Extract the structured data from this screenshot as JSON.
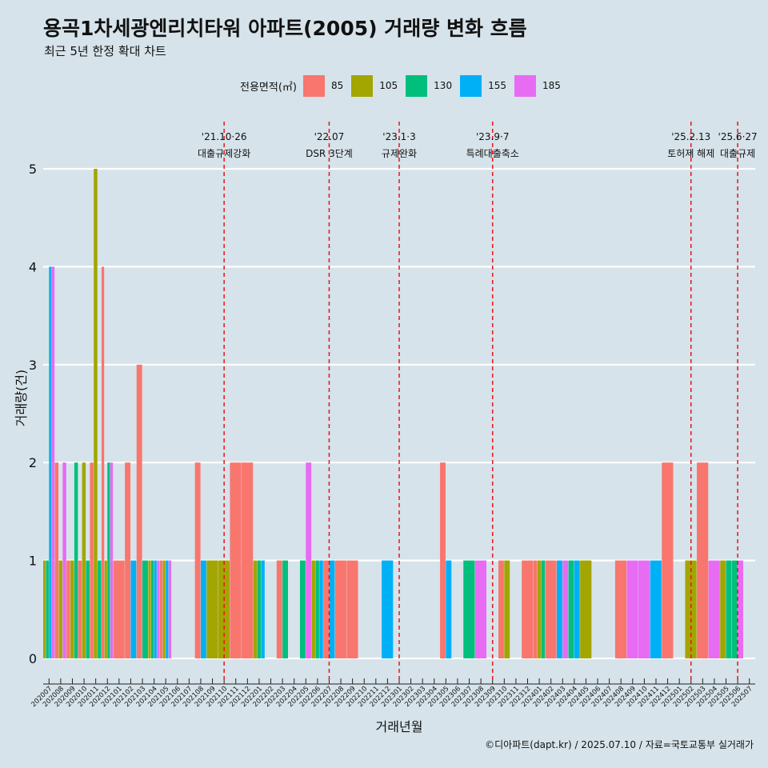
{
  "title": "용곡1차세광엔리치타워 아파트(2005) 거래량 변화 흐름",
  "subtitle": "최근 5년 한정 확대 차트",
  "source": "©디아파트(dapt.kr) / 2025.07.10 / 자료=국토교통부 실거래가",
  "legend": {
    "title": "전용면적(㎡)",
    "items": [
      {
        "label": "85",
        "color": "#f8766d"
      },
      {
        "label": "105",
        "color": "#a3a500"
      },
      {
        "label": "130",
        "color": "#00bf7d"
      },
      {
        "label": "155",
        "color": "#00b0f6"
      },
      {
        "label": "185",
        "color": "#e76bf3"
      }
    ]
  },
  "chart_data": {
    "type": "bar",
    "xlabel": "거래년월",
    "ylabel": "거래량(건)",
    "ylim": [
      0,
      5
    ],
    "yticks": [
      0,
      1,
      2,
      3,
      4,
      5
    ],
    "grid": true,
    "legend_position": "top",
    "categories": [
      "202007",
      "202008",
      "202009",
      "202010",
      "202011",
      "202012",
      "202101",
      "202102",
      "202103",
      "202104",
      "202105",
      "202106",
      "202107",
      "202108",
      "202109",
      "202110",
      "202111",
      "202112",
      "202201",
      "202202",
      "202203",
      "202204",
      "202205",
      "202206",
      "202207",
      "202208",
      "202209",
      "202210",
      "202211",
      "202212",
      "202301",
      "202302",
      "202303",
      "202304",
      "202305",
      "202306",
      "202307",
      "202308",
      "202309",
      "202310",
      "202311",
      "202312",
      "202401",
      "202402",
      "202403",
      "202404",
      "202405",
      "202406",
      "202407",
      "202408",
      "202409",
      "202410",
      "202411",
      "202412",
      "202501",
      "202502",
      "202503",
      "202504",
      "202505",
      "202506",
      "202507"
    ],
    "series": [
      {
        "name": "85",
        "color": "#f8766d",
        "values": [
          0,
          2,
          1,
          1,
          2,
          4,
          1,
          2,
          3,
          0,
          1,
          0,
          0,
          2,
          0,
          0,
          2,
          2,
          0,
          0,
          1,
          0,
          0,
          0,
          1,
          1,
          1,
          0,
          0,
          0,
          0,
          0,
          0,
          0,
          2,
          0,
          0,
          0,
          0,
          1,
          0,
          1,
          1,
          1,
          0,
          0,
          0,
          0,
          0,
          1,
          0,
          0,
          0,
          2,
          0,
          0,
          2,
          0,
          0,
          0,
          0
        ]
      },
      {
        "name": "105",
        "color": "#a3a500",
        "values": [
          1,
          1,
          1,
          2,
          5,
          1,
          0,
          0,
          0,
          1,
          1,
          0,
          0,
          0,
          1,
          1,
          0,
          0,
          1,
          0,
          0,
          0,
          0,
          1,
          0,
          0,
          0,
          0,
          0,
          0,
          0,
          0,
          0,
          0,
          0,
          0,
          0,
          0,
          0,
          1,
          0,
          0,
          1,
          0,
          0,
          0,
          1,
          0,
          0,
          0,
          0,
          0,
          0,
          0,
          0,
          1,
          0,
          0,
          1,
          0,
          0
        ]
      },
      {
        "name": "130",
        "color": "#00bf7d",
        "values": [
          1,
          0,
          2,
          1,
          1,
          2,
          0,
          0,
          1,
          1,
          0,
          0,
          0,
          0,
          0,
          0,
          0,
          0,
          1,
          0,
          1,
          0,
          1,
          1,
          0,
          0,
          0,
          0,
          0,
          0,
          0,
          0,
          0,
          0,
          0,
          0,
          1,
          0,
          0,
          0,
          0,
          0,
          1,
          0,
          0,
          1,
          0,
          0,
          0,
          0,
          0,
          0,
          0,
          0,
          0,
          0,
          0,
          0,
          1,
          1,
          0
        ]
      },
      {
        "name": "155",
        "color": "#00b0f6",
        "values": [
          4,
          0,
          0,
          0,
          0,
          0,
          0,
          1,
          0,
          1,
          1,
          0,
          0,
          1,
          0,
          0,
          0,
          0,
          1,
          0,
          0,
          0,
          0,
          1,
          1,
          0,
          0,
          0,
          0,
          1,
          0,
          0,
          0,
          0,
          1,
          0,
          0,
          0,
          0,
          0,
          0,
          0,
          0,
          0,
          1,
          1,
          0,
          0,
          0,
          0,
          0,
          0,
          1,
          0,
          0,
          0,
          0,
          0,
          0,
          0,
          0
        ]
      },
      {
        "name": "185",
        "color": "#e76bf3",
        "values": [
          4,
          2,
          0,
          0,
          0,
          2,
          0,
          0,
          0,
          1,
          1,
          0,
          0,
          0,
          0,
          0,
          0,
          0,
          0,
          0,
          0,
          0,
          2,
          0,
          0,
          0,
          0,
          0,
          0,
          0,
          0,
          0,
          0,
          0,
          0,
          0,
          0,
          1,
          0,
          0,
          0,
          0,
          0,
          0,
          1,
          0,
          0,
          0,
          0,
          0,
          1,
          1,
          0,
          0,
          0,
          0,
          0,
          1,
          0,
          1,
          0
        ]
      }
    ],
    "annotations": [
      {
        "x": "202110",
        "date": "'21.10·26",
        "text": "대출규제강화"
      },
      {
        "x": "202207",
        "date": "'22.07",
        "text": "DSR 3단계"
      },
      {
        "x": "202301",
        "date": "'23.1·3",
        "text": "규제완화"
      },
      {
        "x": "202309",
        "date": "'23.9·7",
        "text": "특례대출축소"
      },
      {
        "x": "202502",
        "date": "'25.2.13",
        "text": "토허제 해제"
      },
      {
        "x": "202506",
        "date": "'25.6·27",
        "text": "대출규제"
      }
    ]
  }
}
